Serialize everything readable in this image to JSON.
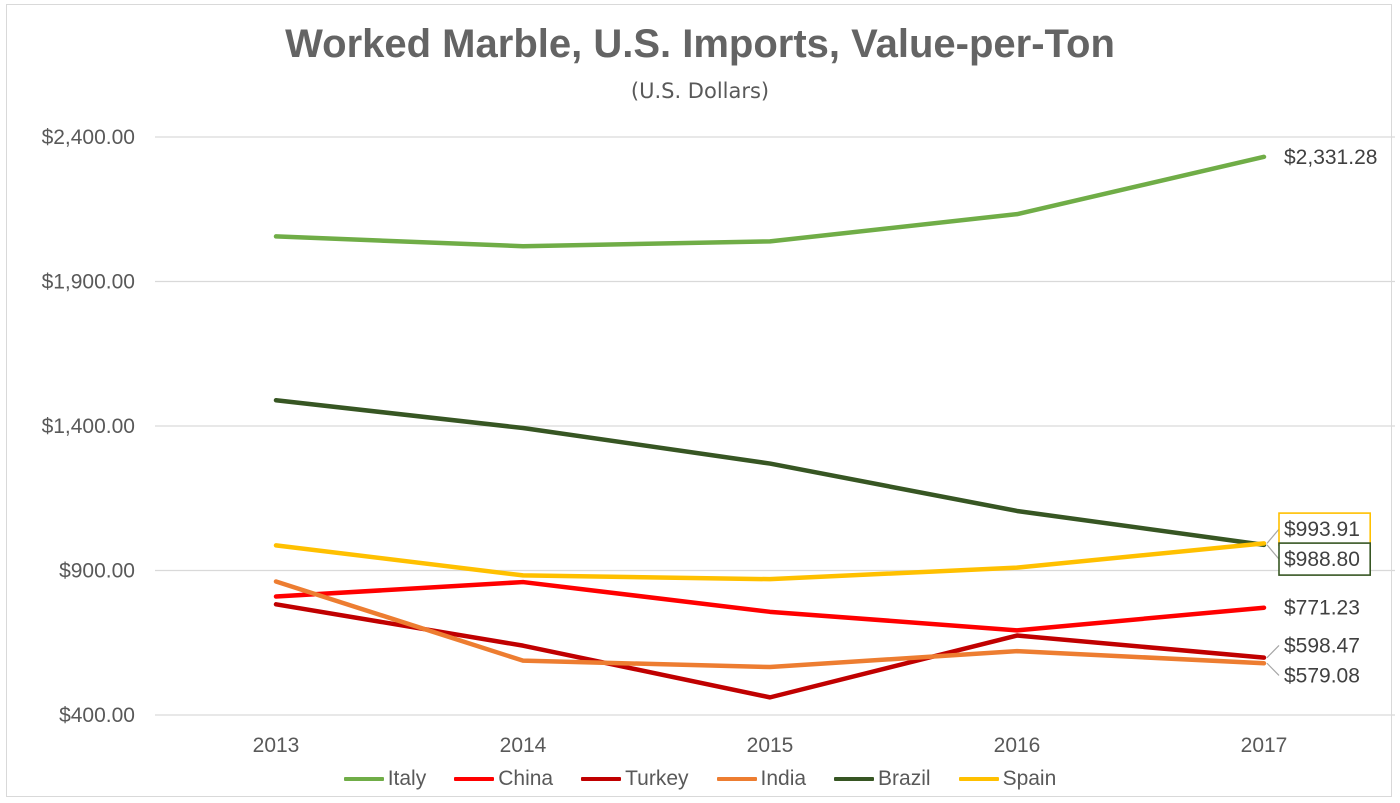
{
  "chart_data": {
    "type": "line",
    "title": "Worked Marble, U.S. Imports, Value-per-Ton",
    "subtitle": "(U.S. Dollars)",
    "x": [
      "2013",
      "2014",
      "2015",
      "2016",
      "2017"
    ],
    "ylim": [
      400,
      2400
    ],
    "yticks": [
      400,
      900,
      1400,
      1900,
      2400
    ],
    "ytick_labels": [
      "$400.00",
      "$900.00",
      "$1,400.00",
      "$1,900.00",
      "$2,400.00"
    ],
    "grid": true,
    "legend_position": "bottom",
    "series": [
      {
        "name": "Italy",
        "color": "#70ad47",
        "values": [
          2056,
          2022,
          2039,
          2133,
          2331.28
        ],
        "end_label": "$2,331.28",
        "label_box": null
      },
      {
        "name": "China",
        "color": "#ff0000",
        "values": [
          810,
          860,
          757,
          693,
          771.23
        ],
        "end_label": "$771.23",
        "label_box": null
      },
      {
        "name": "Turkey",
        "color": "#c00000",
        "values": [
          783,
          640,
          461,
          675,
          598.47
        ],
        "end_label": "$598.47",
        "label_box": null
      },
      {
        "name": "India",
        "color": "#ed7d31",
        "values": [
          862,
          588,
          566,
          621,
          579.08
        ],
        "end_label": "$579.08",
        "label_box": null
      },
      {
        "name": "Brazil",
        "color": "#375623",
        "values": [
          1489,
          1393,
          1270,
          1106,
          988.8
        ],
        "end_label": "$988.80",
        "label_box": "#375623"
      },
      {
        "name": "Spain",
        "color": "#ffc000",
        "values": [
          987,
          883,
          870,
          910,
          993.91
        ],
        "end_label": "$993.91",
        "label_box": "#ffc000"
      }
    ]
  }
}
